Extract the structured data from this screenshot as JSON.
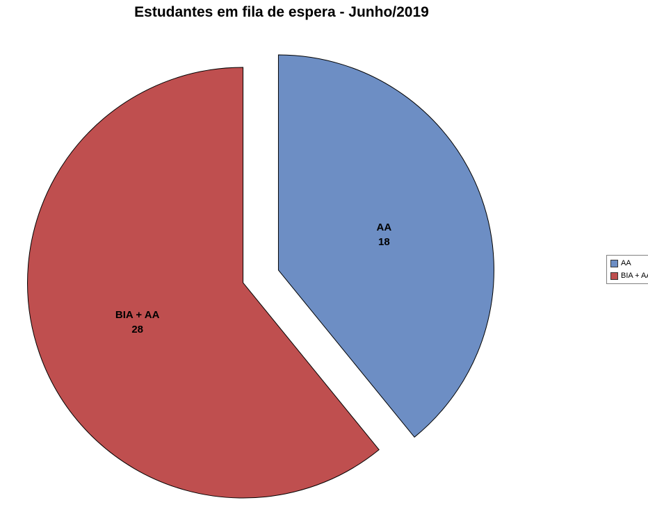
{
  "title": "Estudantes em fila de espera - Junho/2019",
  "chart_data": {
    "type": "pie",
    "title": "Estudantes em fila de espera - Junho/2019",
    "categories": [
      "AA",
      "BIA + AA"
    ],
    "values": [
      18,
      28
    ],
    "data_labels": [
      {
        "name": "AA",
        "value": "18"
      },
      {
        "name": "BIA + AA",
        "value": "28"
      }
    ],
    "colors": [
      "#6D8EC4",
      "#BF4F4F"
    ],
    "stroke_color": "#000000",
    "background": "#ffffff",
    "legend_position": "right",
    "exploded": true,
    "start_angle_deg": 0,
    "total": 46
  },
  "legend": {
    "items": [
      {
        "label": "AA",
        "color": "#6D8EC4"
      },
      {
        "label": "BIA + AA",
        "color": "#BF4F4F"
      }
    ]
  }
}
